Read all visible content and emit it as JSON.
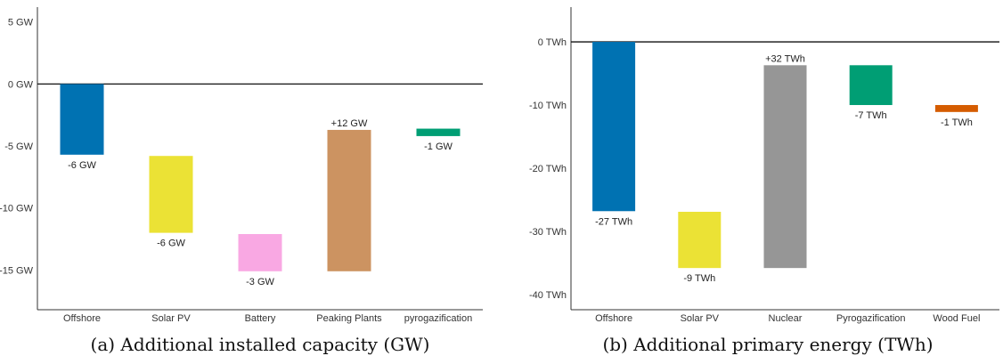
{
  "chart_data": [
    {
      "type": "bar",
      "subtype": "waterfall",
      "caption": "(a) Additional installed capacity (GW)",
      "unit": "GW",
      "categories": [
        "Offshore",
        "Solar PV",
        "Battery",
        "Peaking Plants",
        "pyrogazification"
      ],
      "bars": [
        {
          "category": "Offshore",
          "start": 0,
          "end": -5.7,
          "label": "-6 GW",
          "color": "#0072b2"
        },
        {
          "category": "Solar PV",
          "start": -5.8,
          "end": -12.0,
          "label": "-6 GW",
          "color": "#ebe235"
        },
        {
          "category": "Battery",
          "start": -12.1,
          "end": -15.1,
          "label": "-3 GW",
          "color": "#f9a8e3"
        },
        {
          "category": "Peaking Plants",
          "start": -15.1,
          "end": -3.7,
          "label": "+12 GW",
          "color": "#cc9361"
        },
        {
          "category": "pyrogazification",
          "start": -3.6,
          "end": -4.2,
          "label": "-1 GW",
          "color": "#009e74"
        }
      ],
      "yticks": [
        5,
        0,
        -5,
        -10,
        -15
      ],
      "ytick_labels": [
        "5 GW",
        "0 GW",
        "-5 GW",
        "-10 GW",
        "-15 GW"
      ],
      "ylim": [
        -18.2,
        6.2
      ],
      "zero_line": 0,
      "grid": false,
      "xlabel": "",
      "ylabel": ""
    },
    {
      "type": "bar",
      "subtype": "waterfall",
      "caption": "(b) Additional primary energy (TWh)",
      "unit": "TWh",
      "categories": [
        "Offshore",
        "Solar PV",
        "Nuclear",
        "Pyrogazification",
        "Wood Fuel"
      ],
      "bars": [
        {
          "category": "Offshore",
          "start": 0,
          "end": -26.8,
          "label": "-27 TWh",
          "color": "#0072b2"
        },
        {
          "category": "Solar PV",
          "start": -26.9,
          "end": -35.8,
          "label": "-9 TWh",
          "color": "#ebe235"
        },
        {
          "category": "Nuclear",
          "start": -35.8,
          "end": -3.7,
          "label": "+32 TWh",
          "color": "#969696"
        },
        {
          "category": "Pyrogazification",
          "start": -3.7,
          "end": -10.0,
          "label": "-7 TWh",
          "color": "#009e74"
        },
        {
          "category": "Wood Fuel",
          "start": -10.0,
          "end": -11.1,
          "label": "-1 TWh",
          "color": "#d55c00"
        }
      ],
      "yticks": [
        0,
        -10,
        -20,
        -30,
        -40
      ],
      "ytick_labels": [
        "0 TWh",
        "-10 TWh",
        "-20 TWh",
        "-30 TWh",
        "-40 TWh"
      ],
      "ylim": [
        -42.4,
        5.5
      ],
      "zero_line": 0,
      "grid": false,
      "xlabel": "",
      "ylabel": ""
    }
  ]
}
